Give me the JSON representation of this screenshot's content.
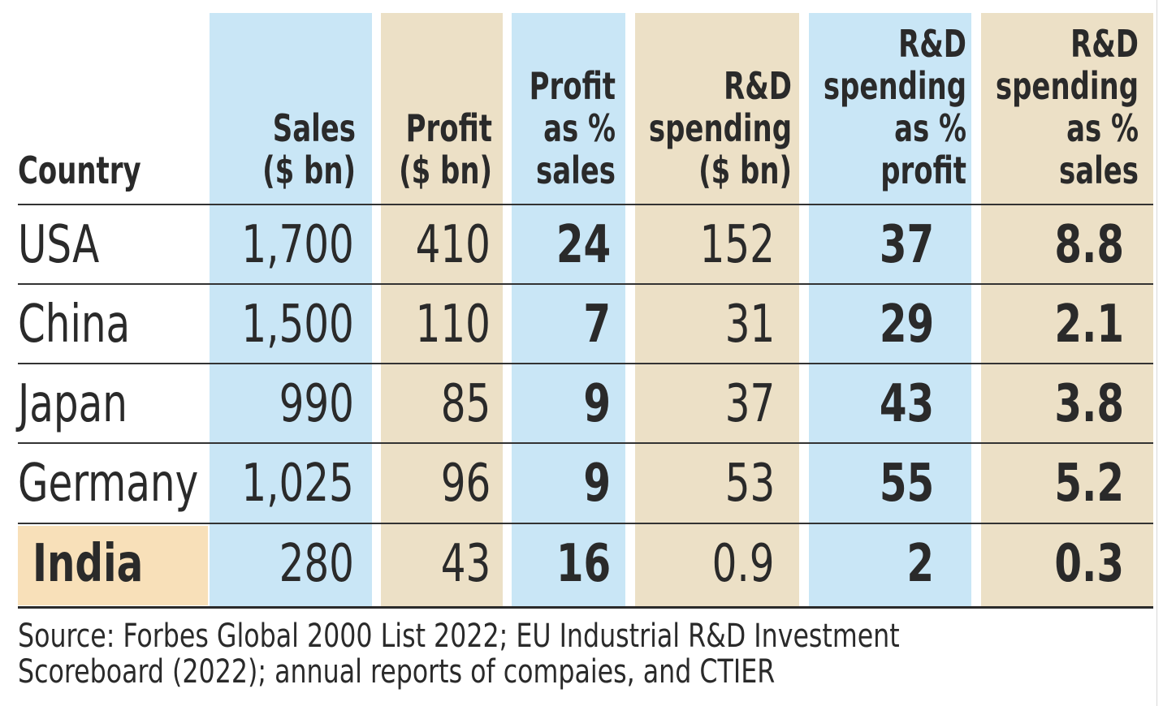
{
  "chart_data": {
    "type": "table",
    "columns": [
      "Country",
      "Sales\n($ bn)",
      "Profit\n($ bn)",
      "Profit\nas %\nsales",
      "R&D\nspending\n($ bn)",
      "R&D\nspending\nas %\nprofit",
      "R&D\nspending\nas %\nsales"
    ],
    "rows": [
      {
        "country": "USA",
        "sales": "1,700",
        "profit": "410",
        "profit_pct_sales": "24",
        "rd_spending": "152",
        "rd_pct_profit": "37",
        "rd_pct_sales": "8.8"
      },
      {
        "country": "China",
        "sales": "1,500",
        "profit": "110",
        "profit_pct_sales": "7",
        "rd_spending": "31",
        "rd_pct_profit": "29",
        "rd_pct_sales": "2.1"
      },
      {
        "country": "Japan",
        "sales": "990",
        "profit": "85",
        "profit_pct_sales": "9",
        "rd_spending": "37",
        "rd_pct_profit": "43",
        "rd_pct_sales": "3.8"
      },
      {
        "country": "Germany",
        "sales": "1,025",
        "profit": "96",
        "profit_pct_sales": "9",
        "rd_spending": "53",
        "rd_pct_profit": "55",
        "rd_pct_sales": "5.2"
      },
      {
        "country": "India",
        "sales": "280",
        "profit": "43",
        "profit_pct_sales": "16",
        "rd_spending": "0.9",
        "rd_pct_profit": "2",
        "rd_pct_sales": "0.3"
      }
    ],
    "highlighted_row": "India",
    "bold_columns": [
      "profit_pct_sales",
      "rd_pct_profit",
      "rd_pct_sales"
    ],
    "colors": {
      "blue_column": "#c9e6f6",
      "tan_column": "#ece0c6",
      "highlight_row": "#f8e0b9",
      "rule": "#333333",
      "text": "#2a2a2a"
    }
  },
  "source": [
    "Source: Forbes Global 2000 List 2022; EU Industrial R&D Investment",
    "Scoreboard (2022); annual reports of compaies, and CTIER"
  ]
}
